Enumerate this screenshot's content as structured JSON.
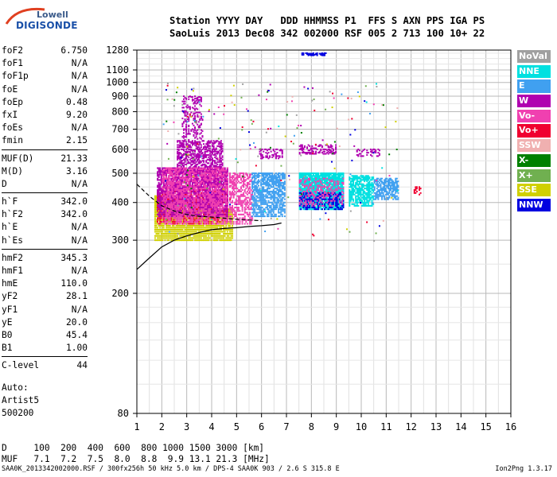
{
  "logo": {
    "top": "Lowell",
    "bottom": "DIGISONDE"
  },
  "header": {
    "line1": "Station YYYY DAY   DDD HHMMSS P1  FFS S AXN PPS IGA PS",
    "line2": "SaoLuis 2013 Dec08 342 002000 RSF 005 2 713 100 10+ 22"
  },
  "params": [
    [
      {
        "name": "foF2",
        "value": "6.750"
      },
      {
        "name": "foF1",
        "value": "N/A"
      },
      {
        "name": "foF1p",
        "value": "N/A"
      },
      {
        "name": "foE",
        "value": "N/A"
      },
      {
        "name": "foEp",
        "value": "0.48"
      },
      {
        "name": "fxI",
        "value": "9.20"
      },
      {
        "name": "foEs",
        "value": "N/A"
      },
      {
        "name": "fmin",
        "value": "2.15"
      }
    ],
    [
      {
        "name": "MUF(D)",
        "value": "21.33"
      },
      {
        "name": "M(D)",
        "value": "3.16"
      },
      {
        "name": "D",
        "value": "N/A"
      }
    ],
    [
      {
        "name": "h`F",
        "value": "342.0"
      },
      {
        "name": "h`F2",
        "value": "342.0"
      },
      {
        "name": "h`E",
        "value": "N/A"
      },
      {
        "name": "h`Es",
        "value": "N/A"
      }
    ],
    [
      {
        "name": "hmF2",
        "value": "345.3"
      },
      {
        "name": "hmF1",
        "value": "N/A"
      },
      {
        "name": "hmE",
        "value": "110.0"
      },
      {
        "name": "yF2",
        "value": "28.1"
      },
      {
        "name": "yF1",
        "value": "N/A"
      },
      {
        "name": "yE",
        "value": "20.0"
      },
      {
        "name": "B0",
        "value": "45.4"
      },
      {
        "name": "B1",
        "value": "1.00"
      }
    ],
    [
      {
        "name": "C-level",
        "value": "44"
      }
    ]
  ],
  "auto": {
    "line1": "Auto:",
    "line2": "Artist5",
    "line3": "500200"
  },
  "dmuf": {
    "d_line": "D     100  200  400  600  800 1000 1500 3000 [km]",
    "muf_line": "MUF   7.1  7.2  7.5  8.0  8.8  9.9 13.1 21.3 [MHz]"
  },
  "footer": {
    "left": "SAA0K_2013342002000.RSF / 300fx256h 50 kHz 5.0 km / DPS-4 SAA0K 903 / 2.6 S 315.8 E",
    "right": "Ion2Png 1.3.17"
  },
  "legend": [
    {
      "label": "NoVal",
      "color": "#a0a0a0"
    },
    {
      "label": "NNE",
      "color": "#00e0e0"
    },
    {
      "label": "E",
      "color": "#40a0f0"
    },
    {
      "label": "W",
      "color": "#b000b0"
    },
    {
      "label": "Vo-",
      "color": "#f040b0"
    },
    {
      "label": "Vo+",
      "color": "#f00030"
    },
    {
      "label": "SSW",
      "color": "#f0b0b0"
    },
    {
      "label": "X-",
      "color": "#008000"
    },
    {
      "label": "X+",
      "color": "#70b050"
    },
    {
      "label": "SSE",
      "color": "#d0d000"
    },
    {
      "label": "NNW",
      "color": "#0000e0"
    }
  ],
  "chart_data": {
    "type": "scatter",
    "xlim": [
      1,
      16
    ],
    "ylim": [
      80,
      1280
    ],
    "y_scale": "log",
    "x_ticks": [
      1,
      2,
      3,
      4,
      5,
      6,
      7,
      8,
      9,
      10,
      11,
      12,
      13,
      14,
      15,
      16
    ],
    "y_ticks": [
      80,
      200,
      300,
      400,
      500,
      600,
      700,
      800,
      900,
      1000,
      1100,
      1280
    ],
    "grid": true,
    "legend_position": "right",
    "clusters": [
      {
        "x": [
          1.7,
          2.5
        ],
        "y": [
          300,
          420
        ],
        "color": "#d0d000",
        "density": 0.9
      },
      {
        "x": [
          2.5,
          4.8
        ],
        "y": [
          300,
          380
        ],
        "color": "#d0d000",
        "density": 0.9
      },
      {
        "x": [
          1.8,
          4.6
        ],
        "y": [
          340,
          440
        ],
        "color": "#f00030",
        "density": 0.6
      },
      {
        "x": [
          1.8,
          4.6
        ],
        "y": [
          360,
          520
        ],
        "color": "#b000b0",
        "density": 0.8
      },
      {
        "x": [
          2.6,
          4.4
        ],
        "y": [
          500,
          640
        ],
        "color": "#b000b0",
        "density": 0.5
      },
      {
        "x": [
          2.8,
          3.6
        ],
        "y": [
          620,
          900
        ],
        "color": "#b000b0",
        "density": 0.2
      },
      {
        "x": [
          2.0,
          4.6
        ],
        "y": [
          340,
          520
        ],
        "color": "#f040b0",
        "density": 0.5
      },
      {
        "x": [
          4.7,
          5.6
        ],
        "y": [
          340,
          500
        ],
        "color": "#f040b0",
        "density": 0.5
      },
      {
        "x": [
          5.6,
          6.9
        ],
        "y": [
          360,
          500
        ],
        "color": "#40a0f0",
        "density": 0.7
      },
      {
        "x": [
          5.9,
          6.8
        ],
        "y": [
          560,
          600
        ],
        "color": "#b000b0",
        "density": 0.4
      },
      {
        "x": [
          7.5,
          9.3
        ],
        "y": [
          380,
          500
        ],
        "color": "#00e0e0",
        "density": 0.9
      },
      {
        "x": [
          7.5,
          9.3
        ],
        "y": [
          380,
          430
        ],
        "color": "#0000e0",
        "density": 0.5
      },
      {
        "x": [
          7.5,
          9.3
        ],
        "y": [
          390,
          480
        ],
        "color": "#f040b0",
        "density": 0.3
      },
      {
        "x": [
          7.5,
          9.0
        ],
        "y": [
          580,
          620
        ],
        "color": "#b000b0",
        "density": 0.4
      },
      {
        "x": [
          9.5,
          10.5
        ],
        "y": [
          390,
          490
        ],
        "color": "#00e0e0",
        "density": 0.7
      },
      {
        "x": [
          10.5,
          11.5
        ],
        "y": [
          410,
          480
        ],
        "color": "#40a0f0",
        "density": 0.7
      },
      {
        "x": [
          9.8,
          10.8
        ],
        "y": [
          570,
          600
        ],
        "color": "#b000b0",
        "density": 0.3
      },
      {
        "x": [
          7.6,
          8.6
        ],
        "y": [
          1230,
          1250
        ],
        "color": "#0000e0",
        "density": 0.4
      },
      {
        "x": [
          12.1,
          12.4
        ],
        "y": [
          410,
          450
        ],
        "color": "#f00030",
        "density": 0.3
      }
    ],
    "trace_curve": {
      "x": [
        1.0,
        1.5,
        2.0,
        2.5,
        3.0,
        3.5,
        4.0,
        4.5,
        5.0,
        5.5,
        6.0,
        6.5,
        6.8
      ],
      "y": [
        240,
        262,
        285,
        300,
        310,
        318,
        325,
        328,
        330,
        333,
        335,
        338,
        342
      ]
    },
    "dashed_curve": {
      "x": [
        1.0,
        1.5,
        2.0,
        2.5,
        3.0,
        3.5,
        4.0,
        4.5,
        5.0,
        5.5,
        6.0
      ],
      "y": [
        460,
        420,
        390,
        375,
        365,
        360,
        358,
        355,
        352,
        350,
        348
      ]
    }
  }
}
